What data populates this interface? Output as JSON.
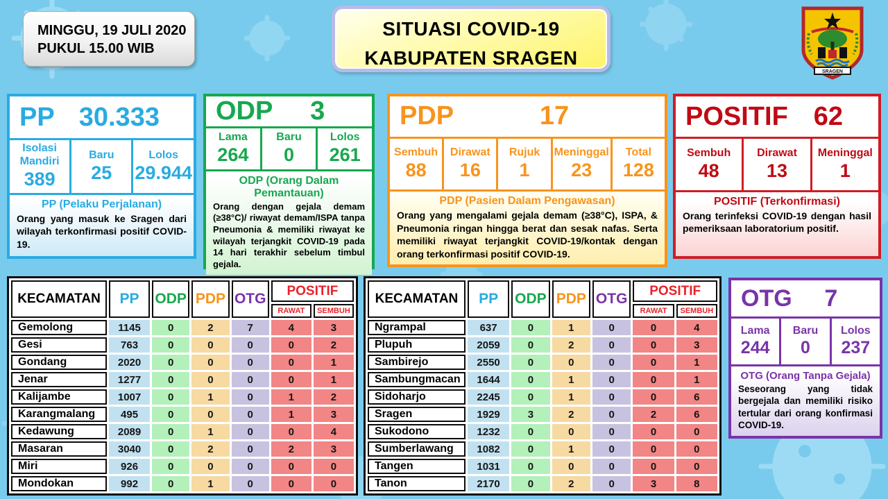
{
  "header": {
    "datetime_line1": "MINGGU, 19 JULI 2020",
    "datetime_line2": "PUKUL 15.00 WIB",
    "title_line1": "SITUASI COVID-19",
    "title_line2": "KABUPATEN SRAGEN",
    "logo_banner": "SRAGEN"
  },
  "cards": {
    "pp": {
      "label": "PP",
      "total": "30.333",
      "cells": [
        {
          "label": "Isolasi Mandiri",
          "value": "389"
        },
        {
          "label": "Baru",
          "value": "25"
        },
        {
          "label": "Lolos",
          "value": "29.944"
        }
      ],
      "desc_title": "PP (Pelaku Perjalanan)",
      "desc_body": "Orang yang masuk ke Sragen dari wilayah terkonfirmasi positif COVID-19.",
      "color": "#29ABE2"
    },
    "odp": {
      "label": "ODP",
      "total": "3",
      "cells": [
        {
          "label": "Lama",
          "value": "264"
        },
        {
          "label": "Baru",
          "value": "0"
        },
        {
          "label": "Lolos",
          "value": "261"
        }
      ],
      "desc_title": "ODP (Orang Dalam Pemantauan)",
      "desc_body": "Orang dengan gejala demam (≥38°C)/ riwayat demam/ISPA tanpa Pneumonia & memiliki riwayat ke wilayah terjangkit COVID-19 pada 14 hari terakhir sebelum timbul gejala.",
      "color": "#17A84F"
    },
    "pdp": {
      "label": "PDP",
      "total": "17",
      "cells": [
        {
          "label": "Sembuh",
          "value": "88"
        },
        {
          "label": "Dirawat",
          "value": "16"
        },
        {
          "label": "Rujuk",
          "value": "1"
        },
        {
          "label": "Meninggal",
          "value": "23"
        },
        {
          "label": "Total",
          "value": "128"
        }
      ],
      "desc_title": "PDP (Pasien Dalam Pengawasan)",
      "desc_body": "Orang yang mengalami gejala demam (≥38°C), ISPA, & Pneumonia ringan hingga berat dan sesak nafas. Serta memiliki riwayat terjangkit COVID-19/kontak dengan orang terkonfirmasi positif COVID-19.",
      "color": "#F7941D"
    },
    "positif": {
      "label": "POSITIF",
      "total": "62",
      "cells": [
        {
          "label": "Sembuh",
          "value": "48"
        },
        {
          "label": "Dirawat",
          "value": "13"
        },
        {
          "label": "Meninggal",
          "value": "1"
        }
      ],
      "desc_title": "POSITIF (Terkonfirmasi)",
      "desc_body": "Orang terinfeksi COVID-19 dengan hasil pemeriksaan laboratorium positif.",
      "color": "#D01C24"
    },
    "otg": {
      "label": "OTG",
      "total": "7",
      "cells": [
        {
          "label": "Lama",
          "value": "244"
        },
        {
          "label": "Baru",
          "value": "0"
        },
        {
          "label": "Lolos",
          "value": "237"
        }
      ],
      "desc_title": "OTG (Orang Tanpa Gejala)",
      "desc_body": "Seseorang yang tidak bergejala dan memiliki risiko tertular dari orang konfirmasi COVID-19.",
      "color": "#7A33A8"
    }
  },
  "tables": {
    "columns": [
      "KECAMATAN",
      "PP",
      "ODP",
      "PDP",
      "OTG"
    ],
    "positif_group": {
      "label": "POSITIF",
      "sub": [
        "RAWAT",
        "SEMBUH"
      ]
    },
    "left_rows": [
      {
        "name": "Gemolong",
        "values": [
          1145,
          0,
          2,
          7,
          4,
          3
        ]
      },
      {
        "name": "Gesi",
        "values": [
          763,
          0,
          0,
          0,
          0,
          2
        ]
      },
      {
        "name": "Gondang",
        "values": [
          2020,
          0,
          0,
          0,
          0,
          1
        ]
      },
      {
        "name": "Jenar",
        "values": [
          1277,
          0,
          0,
          0,
          0,
          1
        ]
      },
      {
        "name": "Kalijambe",
        "values": [
          1007,
          0,
          1,
          0,
          1,
          2
        ]
      },
      {
        "name": "Karangmalang",
        "values": [
          495,
          0,
          0,
          0,
          1,
          3
        ]
      },
      {
        "name": "Kedawung",
        "values": [
          2089,
          0,
          1,
          0,
          0,
          4
        ]
      },
      {
        "name": "Masaran",
        "values": [
          3040,
          0,
          2,
          0,
          2,
          3
        ]
      },
      {
        "name": "Miri",
        "values": [
          926,
          0,
          0,
          0,
          0,
          0
        ]
      },
      {
        "name": "Mondokan",
        "values": [
          992,
          0,
          1,
          0,
          0,
          0
        ]
      }
    ],
    "right_rows": [
      {
        "name": "Ngrampal",
        "values": [
          637,
          0,
          1,
          0,
          0,
          4
        ]
      },
      {
        "name": "Plupuh",
        "values": [
          2059,
          0,
          2,
          0,
          0,
          3
        ]
      },
      {
        "name": "Sambirejo",
        "values": [
          2550,
          0,
          0,
          0,
          0,
          1
        ]
      },
      {
        "name": "Sambungmacan",
        "values": [
          1644,
          0,
          1,
          0,
          0,
          1
        ]
      },
      {
        "name": "Sidoharjo",
        "values": [
          2245,
          0,
          1,
          0,
          0,
          6
        ]
      },
      {
        "name": "Sragen",
        "values": [
          1929,
          3,
          2,
          0,
          2,
          6
        ]
      },
      {
        "name": "Sukodono",
        "values": [
          1232,
          0,
          0,
          0,
          0,
          0
        ]
      },
      {
        "name": "Sumberlawang",
        "values": [
          1082,
          0,
          1,
          0,
          0,
          0
        ]
      },
      {
        "name": "Tangen",
        "values": [
          1031,
          0,
          0,
          0,
          0,
          0
        ]
      },
      {
        "name": "Tanon",
        "values": [
          2170,
          0,
          2,
          0,
          3,
          8
        ]
      }
    ]
  },
  "colors": {
    "background": "#79CBED",
    "virus_pattern": "#A4DEF5",
    "pp_blue": "#29ABE2",
    "odp_green": "#17A84F",
    "pdp_orange": "#F7941D",
    "positif_red": "#D01C24",
    "table_header_red": "#E8232B",
    "otg_purple": "#7A33A8",
    "title_bg_yellow": "#FDF468",
    "cell_pp": "#C2E1F0",
    "cell_odp": "#B4F0BA",
    "cell_pdp": "#F7D9A2",
    "cell_otg": "#C8C2E1",
    "cell_positif": "#F28585"
  }
}
